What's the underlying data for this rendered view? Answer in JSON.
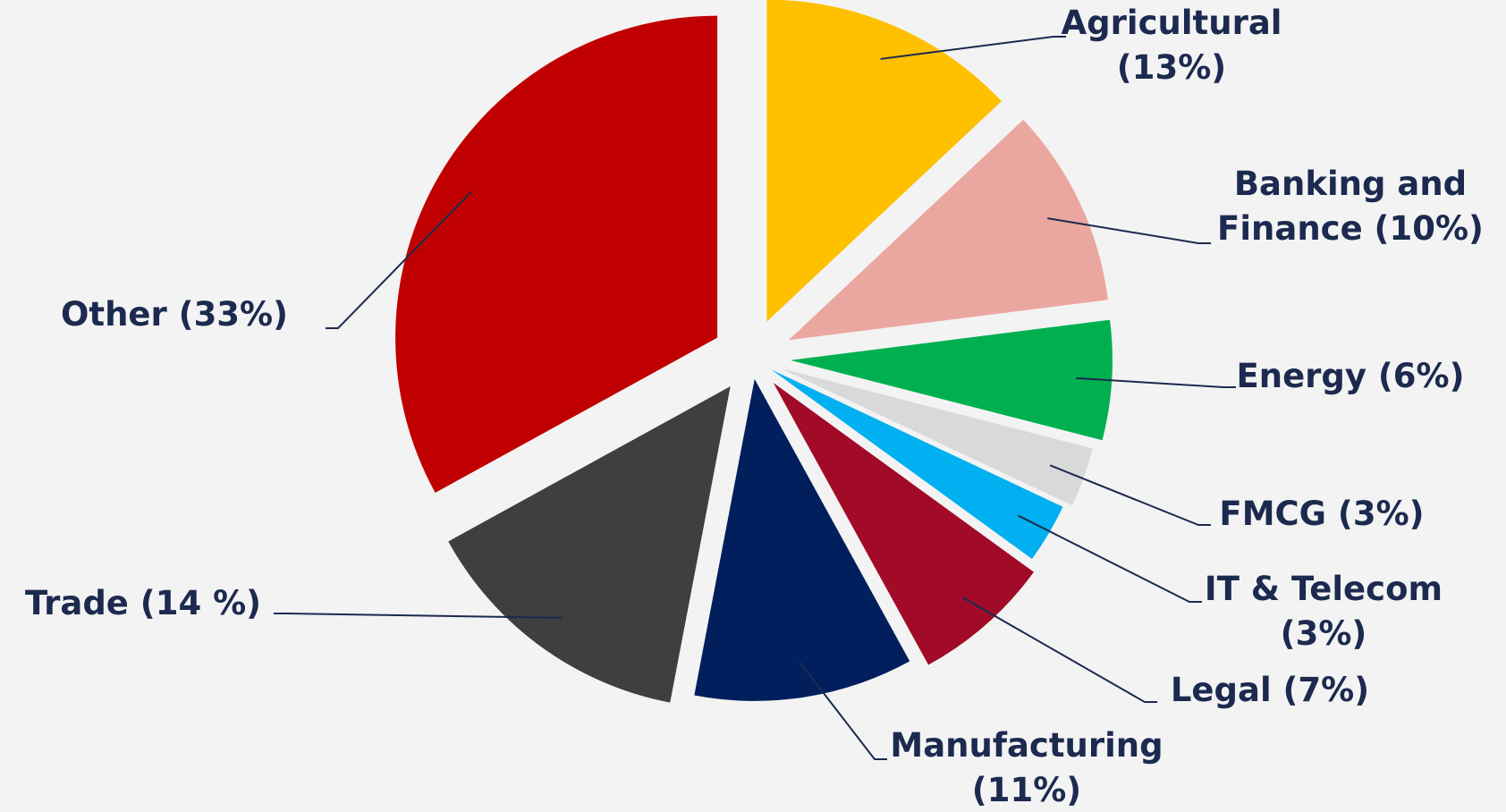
{
  "chart_data": {
    "type": "pie",
    "exploded": true,
    "legend": "none",
    "slices": [
      {
        "name": "Agricultural",
        "value": 13,
        "color": "#ffc000",
        "label_lines": [
          "Agricultural",
          "(13%)"
        ]
      },
      {
        "name": "Banking and Finance",
        "value": 10,
        "color": "#eaa7a0",
        "label_lines": [
          "Banking and",
          "Finance (10%)"
        ]
      },
      {
        "name": "Energy",
        "value": 6,
        "color": "#00b050",
        "label_lines": [
          "Energy (6%)"
        ]
      },
      {
        "name": "FMCG",
        "value": 3,
        "color": "#d9d9d9",
        "label_lines": [
          "FMCG (3%)"
        ]
      },
      {
        "name": "IT & Telecom",
        "value": 3,
        "color": "#00b0f0",
        "label_lines": [
          "IT & Telecom",
          "(3%)"
        ]
      },
      {
        "name": "Legal",
        "value": 7,
        "color": "#a10b28",
        "label_lines": [
          "Legal (7%)"
        ]
      },
      {
        "name": "Manufacturing",
        "value": 11,
        "color": "#001f5c",
        "label_lines": [
          "Manufacturing",
          "(11%)"
        ]
      },
      {
        "name": "Trade",
        "value": 14,
        "color": "#3f3f3f",
        "label_lines": [
          "Trade (14 %)"
        ]
      },
      {
        "name": "Other",
        "value": 33,
        "color": "#c00000",
        "label_lines": [
          "Other (33%)"
        ]
      }
    ]
  }
}
